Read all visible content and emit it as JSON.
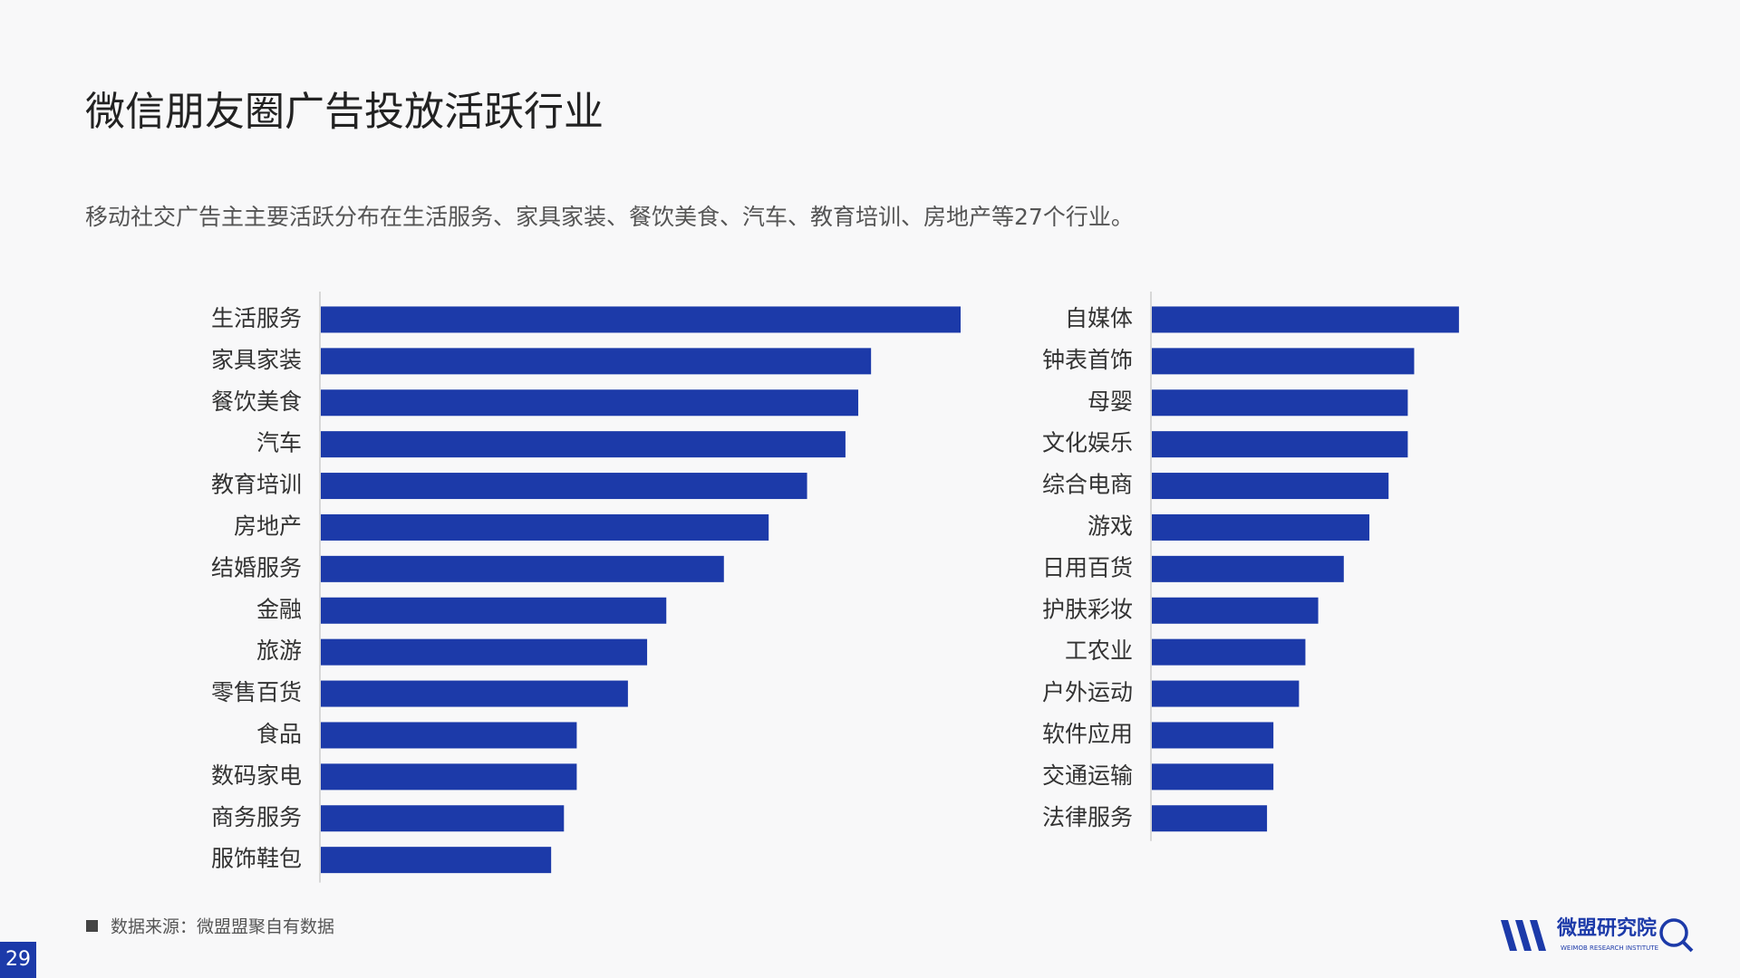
{
  "title": "微信朋友圈广告投放活跃行业",
  "subtitle": "移动社交广告主主要活跃分布在生活服务、家具家装、餐饮美食、汽车、教育培训、房地产等27个行业。",
  "source": "数据来源：微盟盟聚自有数据",
  "page_number": "29",
  "logo": {
    "name": "微盟研究院",
    "tagline": "WEIMOB RESEARCH INSTITUTE"
  },
  "chart_data": [
    {
      "type": "bar",
      "orientation": "horizontal",
      "color": "#1c3aa9",
      "xlim": [
        0,
        100
      ],
      "categories": [
        "生活服务",
        "家具家装",
        "餐饮美食",
        "汽车",
        "教育培训",
        "房地产",
        "结婚服务",
        "金融",
        "旅游",
        "零售百货",
        "食品",
        "数码家电",
        "商务服务",
        "服饰鞋包"
      ],
      "values": [
        100,
        86,
        84,
        82,
        76,
        70,
        63,
        54,
        51,
        48,
        40,
        40,
        38,
        36
      ]
    },
    {
      "type": "bar",
      "orientation": "horizontal",
      "color": "#1c3aa9",
      "xlim": [
        0,
        100
      ],
      "categories": [
        "自媒体",
        "钟表首饰",
        "母婴",
        "文化娱乐",
        "综合电商",
        "游戏",
        "日用百货",
        "护肤彩妆",
        "工农业",
        "户外运动",
        "软件应用",
        "交通运输",
        "法律服务"
      ],
      "values": [
        48,
        41,
        40,
        40,
        37,
        34,
        30,
        26,
        24,
        23,
        19,
        19,
        18
      ]
    }
  ]
}
